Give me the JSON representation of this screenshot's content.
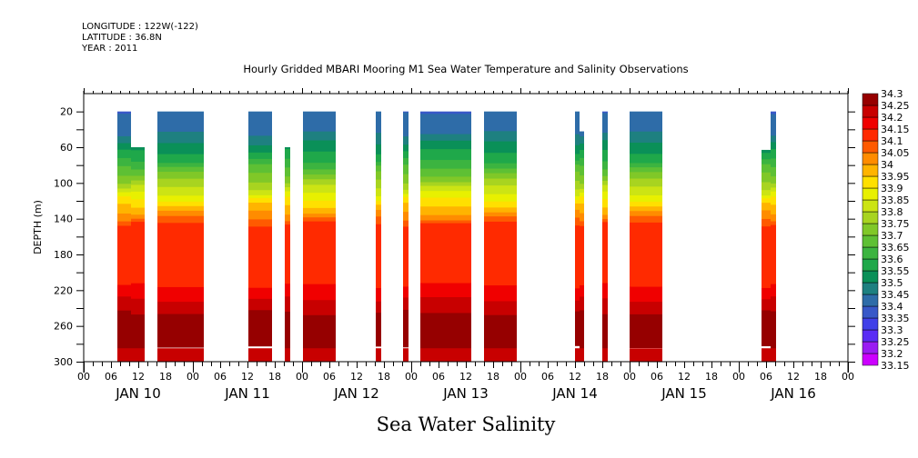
{
  "header": {
    "longitude": "LONGITUDE : 122W(-122)",
    "latitude": "LATITUDE : 36.8N",
    "year": "YEAR : 2011"
  },
  "chart_data": {
    "type": "heatmap",
    "title": "Hourly Gridded MBARI Mooring M1 Sea Water Temperature and Salinity Observations",
    "subtitle": "Sea Water Salinity",
    "ylabel": "DEPTH (m)",
    "xlabel": "",
    "ylim": [
      300,
      0
    ],
    "xlim_hours": [
      0,
      168
    ],
    "y_ticks": [
      20,
      60,
      100,
      140,
      180,
      220,
      260,
      300
    ],
    "x_hour_ticks": [
      "00",
      "06",
      "12",
      "18",
      "00",
      "06",
      "12",
      "18",
      "00",
      "06",
      "12",
      "18",
      "00",
      "06",
      "12",
      "18",
      "00",
      "06",
      "12",
      "18",
      "00",
      "06",
      "12",
      "18",
      "00",
      "06",
      "12",
      "18",
      "00"
    ],
    "day_labels": [
      "JAN 10",
      "JAN 11",
      "JAN 12",
      "JAN 13",
      "JAN 14",
      "JAN 15",
      "JAN 16"
    ],
    "colorbar": {
      "levels": [
        33.15,
        33.2,
        33.25,
        33.3,
        33.35,
        33.4,
        33.45,
        33.5,
        33.55,
        33.6,
        33.65,
        33.7,
        33.75,
        33.8,
        33.85,
        33.9,
        33.95,
        34,
        34.05,
        34.1,
        34.15,
        34.2,
        34.25,
        34.3
      ],
      "labels": [
        "33.15",
        "33.2",
        "33.25",
        "33.3",
        "33.35",
        "33.4",
        "33.45",
        "33.5",
        "33.55",
        "33.6",
        "33.65",
        "33.7",
        "33.75",
        "33.8",
        "33.85",
        "33.9",
        "33.95",
        "34",
        "34.05",
        "34.1",
        "34.15",
        "34.2",
        "34.25",
        "34.3"
      ],
      "colors": [
        "#cc00ff",
        "#9a1cf2",
        "#5a2cf5",
        "#4040e8",
        "#3858c8",
        "#2e6ca8",
        "#1e8080",
        "#0a9058",
        "#1fa84a",
        "#3cb440",
        "#5ec034",
        "#80c828",
        "#a8d420",
        "#cce414",
        "#e8f000",
        "#ffe000",
        "#ffb400",
        "#ff8c00",
        "#ff5a00",
        "#ff2a00",
        "#f00000",
        "#c80000",
        "#960000"
      ]
    },
    "data_segments_hours": [
      {
        "start": 7.4,
        "end": 10.4,
        "top_depth": 20
      },
      {
        "start": 10.4,
        "end": 13.4,
        "top_depth": 60
      },
      {
        "start": 16.2,
        "end": 26.4,
        "top_depth": 20
      },
      {
        "start": 36.2,
        "end": 41.4,
        "top_depth": 20
      },
      {
        "start": 44.2,
        "end": 45.4,
        "top_depth": 60
      },
      {
        "start": 48.2,
        "end": 55.4,
        "top_depth": 20
      },
      {
        "start": 64.2,
        "end": 65.4,
        "top_depth": 20
      },
      {
        "start": 70.2,
        "end": 71.4,
        "top_depth": 20
      },
      {
        "start": 74.0,
        "end": 85.2,
        "top_depth": 20
      },
      {
        "start": 88.0,
        "end": 95.2,
        "top_depth": 20
      },
      {
        "start": 108.0,
        "end": 109.0,
        "top_depth": 20
      },
      {
        "start": 109.0,
        "end": 110.0,
        "top_depth": 40
      },
      {
        "start": 114.0,
        "end": 115.2,
        "top_depth": 20
      },
      {
        "start": 120.0,
        "end": 127.2,
        "top_depth": 20
      },
      {
        "start": 149.0,
        "end": 151.0,
        "top_depth": 60
      },
      {
        "start": 151.0,
        "end": 152.2,
        "top_depth": 20
      }
    ],
    "typical_profile": {
      "depths": [
        20,
        45,
        55,
        65,
        75,
        82,
        90,
        98,
        105,
        112,
        118,
        125,
        133,
        140,
        146,
        215,
        230,
        245,
        285,
        300
      ],
      "salinity": [
        33.35,
        33.4,
        33.45,
        33.5,
        33.55,
        33.6,
        33.65,
        33.7,
        33.75,
        33.8,
        33.85,
        33.9,
        33.95,
        34.0,
        34.05,
        34.1,
        34.15,
        34.2,
        34.25,
        34.2
      ]
    }
  }
}
